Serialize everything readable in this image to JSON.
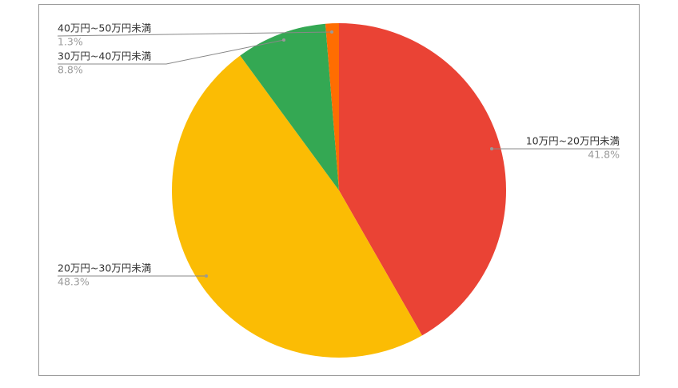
{
  "chart_data": {
    "type": "pie",
    "categories": [
      "10万円~20万円未満",
      "20万円~30万円未満",
      "30万円~40万円未満",
      "40万円~50万円未満"
    ],
    "values": [
      41.8,
      48.3,
      8.8,
      1.3
    ],
    "value_labels": [
      "41.8%",
      "48.3%",
      "8.8%",
      "1.3%"
    ],
    "colors": [
      "#ea4335",
      "#fbbc04",
      "#34a853",
      "#ff6d01"
    ]
  }
}
